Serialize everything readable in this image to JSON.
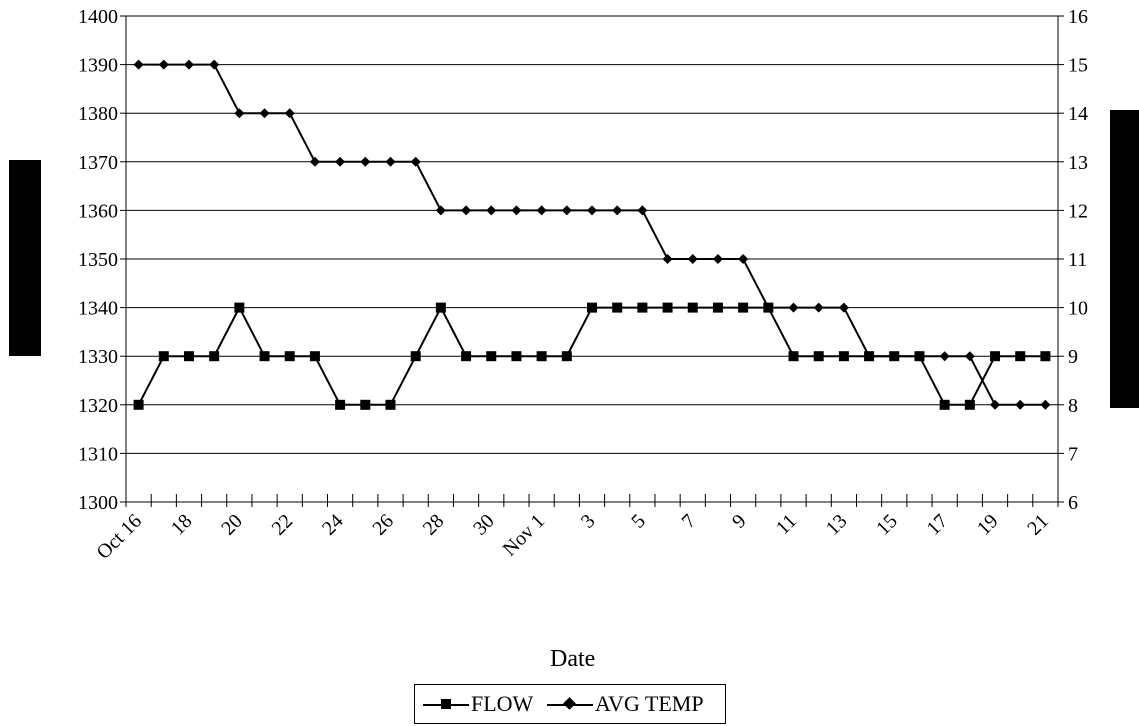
{
  "chart_data": {
    "type": "line",
    "xlabel": "Date",
    "ylabel_left": "",
    "ylabel_right": "",
    "x_tick_labels": [
      "Oct 16",
      "18",
      "20",
      "22",
      "24",
      "26",
      "28",
      "30",
      "Nov 1",
      "3",
      "5",
      "7",
      "9",
      "11",
      "13",
      "15",
      "17",
      "19",
      "21"
    ],
    "x_count": 37,
    "ylim_left": [
      1300,
      1400
    ],
    "yticks_left": [
      1300,
      1310,
      1320,
      1330,
      1340,
      1350,
      1360,
      1370,
      1380,
      1390,
      1400
    ],
    "ylim_right": [
      6,
      16
    ],
    "yticks_right": [
      6,
      7,
      8,
      9,
      10,
      11,
      12,
      13,
      14,
      15,
      16
    ],
    "grid": "horizontal",
    "legend_position": "bottom-center",
    "series": [
      {
        "name": "FLOW",
        "axis": "left",
        "marker": "square",
        "values": [
          1320,
          1330,
          1330,
          1330,
          1340,
          1330,
          1330,
          1330,
          1320,
          1320,
          1320,
          1330,
          1340,
          1330,
          1330,
          1330,
          1330,
          1330,
          1340,
          1340,
          1340,
          1340,
          1340,
          1340,
          1340,
          1340,
          1330,
          1330,
          1330,
          1330,
          1330,
          1330,
          1320,
          1320,
          1330,
          1330,
          1330
        ]
      },
      {
        "name": "AVG TEMP",
        "axis": "right",
        "marker": "diamond",
        "values": [
          15,
          15,
          15,
          15,
          14,
          14,
          14,
          13,
          13,
          13,
          13,
          13,
          12,
          12,
          12,
          12,
          12,
          12,
          12,
          12,
          12,
          11,
          11,
          11,
          11,
          10,
          10,
          10,
          10,
          9,
          9,
          9,
          9,
          9,
          8,
          8,
          8
        ]
      }
    ]
  },
  "colors": {
    "line": "#000000",
    "grid": "#000000",
    "background": "#ffffff"
  },
  "legend": {
    "flow_label": "FLOW",
    "temp_label": "AVG TEMP"
  }
}
